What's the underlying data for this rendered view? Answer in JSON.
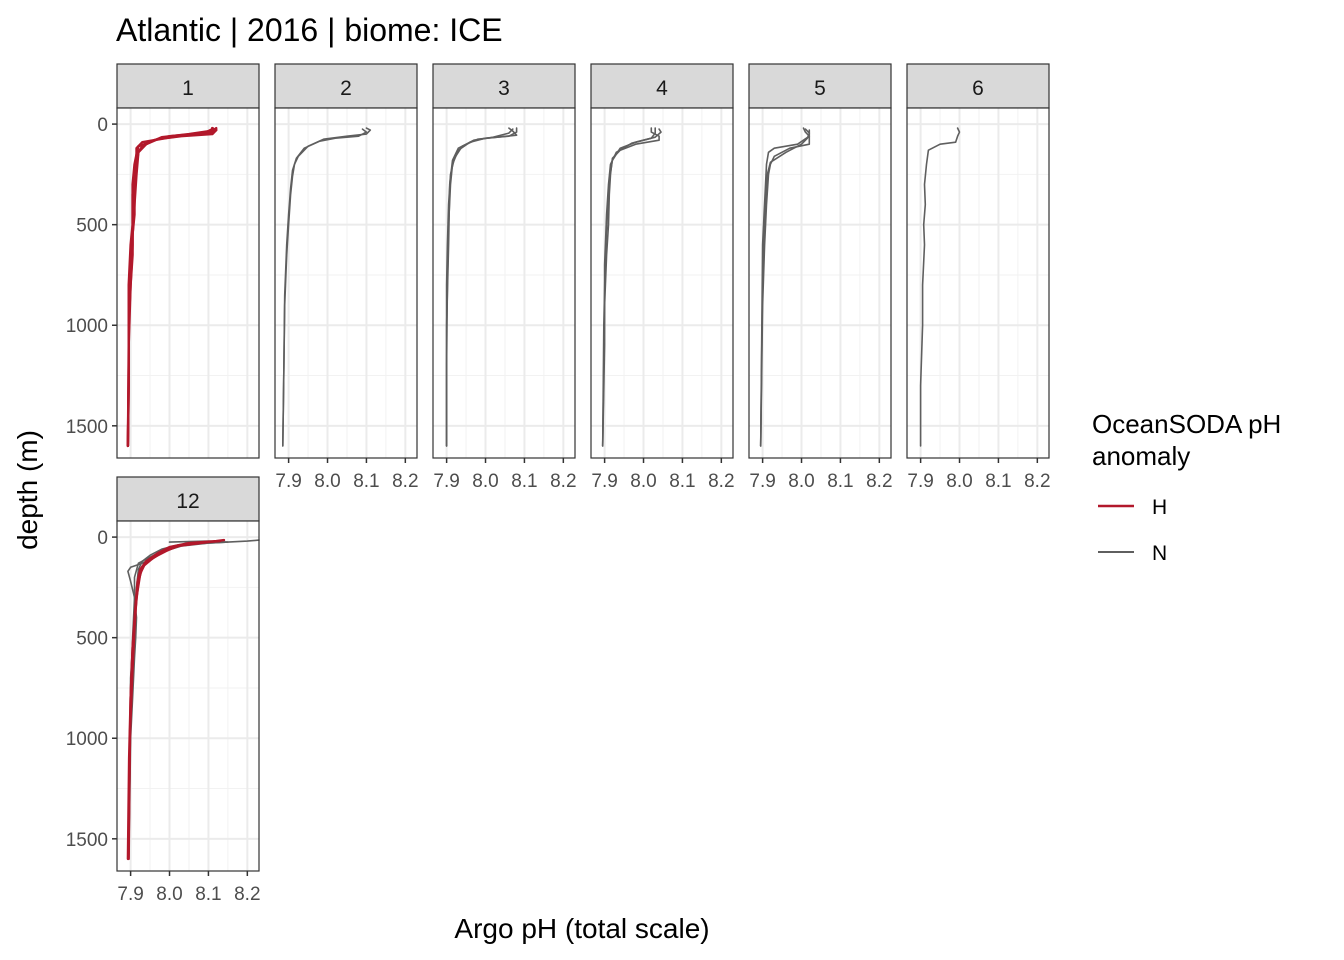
{
  "chart_data": {
    "type": "line",
    "title": "Atlantic | 2016 | biome: ICE",
    "xlabel": "Argo pH (total scale)",
    "ylabel": "depth (m)",
    "xlim": [
      7.865,
      8.23
    ],
    "ylim": [
      1660,
      -80
    ],
    "x_ticks": [
      7.9,
      8.0,
      8.1,
      8.2
    ],
    "x_tick_labels": [
      "7.9",
      "8.0",
      "8.1",
      "8.2"
    ],
    "y_ticks": [
      0,
      500,
      1000,
      1500
    ],
    "y_tick_labels": [
      "0",
      "500",
      "1000",
      "1500"
    ],
    "grid": true,
    "legend": {
      "title": "OceanSODA pH anomaly",
      "title_lines": [
        "OceanSODA pH",
        "anomaly"
      ],
      "position": "right",
      "entries": [
        {
          "key": "H",
          "label": "H",
          "color": "#b2182b"
        },
        {
          "key": "N",
          "label": "N",
          "color": "#5f5f5f"
        }
      ]
    },
    "panels": [
      {
        "label": "1",
        "series": [
          {
            "group": "H",
            "x": [
              8.11,
              8.12,
              8.11,
              8.03,
              7.99,
              7.93,
              7.915,
              7.915,
              7.91,
              7.905,
              7.905,
              7.905,
              7.9,
              7.895,
              7.895,
              7.895,
              7.893
            ],
            "y": [
              20,
              30,
              50,
              60,
              70,
              90,
              120,
              150,
              200,
              300,
              400,
              500,
              600,
              800,
              1000,
              1300,
              1600
            ]
          },
          {
            "group": "H",
            "x": [
              8.12,
              8.12,
              8.05,
              7.98,
              7.95,
              7.92,
              7.915,
              7.91,
              7.905,
              7.905,
              7.905,
              7.9,
              7.895,
              7.895,
              7.893
            ],
            "y": [
              20,
              30,
              50,
              65,
              90,
              110,
              150,
              250,
              350,
              500,
              600,
              800,
              1000,
              1300,
              1600
            ]
          },
          {
            "group": "H",
            "x": [
              8.11,
              8.09,
              8.0,
              7.96,
              7.93,
              7.92,
              7.915,
              7.91,
              7.91,
              7.9,
              7.895,
              7.895,
              7.893
            ],
            "y": [
              25,
              45,
              60,
              80,
              110,
              140,
              200,
              300,
              450,
              650,
              900,
              1200,
              1600
            ]
          },
          {
            "group": "H",
            "x": [
              8.11,
              8.11,
              8.04,
              7.97,
              7.94,
              7.92,
              7.915,
              7.91,
              7.905,
              7.905,
              7.9,
              7.895,
              7.893
            ],
            "y": [
              20,
              40,
              55,
              75,
              100,
              140,
              250,
              400,
              550,
              650,
              800,
              1100,
              1600
            ]
          }
        ]
      },
      {
        "label": "2",
        "series": [
          {
            "group": "N",
            "x": [
              8.1,
              8.11,
              8.1,
              8.05,
              7.99,
              7.95,
              7.925,
              7.915,
              7.91,
              7.905,
              7.9,
              7.895,
              7.89,
              7.888,
              7.885
            ],
            "y": [
              20,
              30,
              50,
              60,
              75,
              110,
              160,
              200,
              260,
              350,
              500,
              650,
              900,
              1200,
              1600
            ]
          },
          {
            "group": "N",
            "x": [
              8.09,
              8.1,
              8.08,
              8.02,
              7.98,
              7.94,
              7.92,
              7.91,
              7.905,
              7.9,
              7.895,
              7.89,
              7.888,
              7.885
            ],
            "y": [
              25,
              40,
              60,
              70,
              85,
              120,
              170,
              230,
              320,
              450,
              600,
              850,
              1200,
              1600
            ]
          }
        ]
      },
      {
        "label": "3",
        "series": [
          {
            "group": "N",
            "x": [
              8.06,
              8.07,
              8.08,
              8.03,
              7.98,
              7.94,
              7.92,
              7.91,
              7.905,
              7.902,
              7.9,
              7.9,
              7.9,
              7.9
            ],
            "y": [
              20,
              35,
              55,
              65,
              75,
              110,
              170,
              250,
              400,
              600,
              800,
              1000,
              1300,
              1600
            ]
          },
          {
            "group": "N",
            "x": [
              8.08,
              8.08,
              8.06,
              8.0,
              7.96,
              7.93,
              7.915,
              7.91,
              7.905,
              7.902,
              7.9,
              7.9
            ],
            "y": [
              20,
              40,
              60,
              70,
              90,
              130,
              200,
              300,
              500,
              800,
              1200,
              1600
            ]
          },
          {
            "group": "N",
            "x": [
              8.07,
              8.06,
              8.02,
              7.97,
              7.93,
              7.915,
              7.908,
              7.905,
              7.9,
              7.9
            ],
            "y": [
              25,
              45,
              65,
              80,
              120,
              180,
              300,
              600,
              1000,
              1600
            ]
          }
        ]
      },
      {
        "label": "4",
        "series": [
          {
            "group": "N",
            "x": [
              8.02,
              8.02,
              8.04,
              8.04,
              7.98,
              7.94,
              7.92,
              7.915,
              7.912,
              7.91,
              7.905,
              7.9,
              7.898,
              7.895
            ],
            "y": [
              20,
              40,
              60,
              80,
              100,
              130,
              170,
              250,
              350,
              500,
              650,
              900,
              1200,
              1600
            ]
          },
          {
            "group": "N",
            "x": [
              8.03,
              8.03,
              8.02,
              7.97,
              7.93,
              7.915,
              7.91,
              7.905,
              7.9,
              7.9,
              7.895
            ],
            "y": [
              20,
              45,
              70,
              95,
              140,
              200,
              300,
              450,
              700,
              1100,
              1600
            ]
          },
          {
            "group": "N",
            "x": [
              8.04,
              8.045,
              8.03,
              7.98,
              7.94,
              7.92,
              7.912,
              7.908,
              7.902,
              7.898,
              7.895
            ],
            "y": [
              25,
              40,
              65,
              90,
              120,
              180,
              280,
              420,
              650,
              1000,
              1600
            ]
          }
        ]
      },
      {
        "label": "5",
        "series": [
          {
            "group": "N",
            "x": [
              8.005,
              8.01,
              8.02,
              8.02,
              7.97,
              7.93,
              7.92,
              7.915,
              7.91,
              7.905,
              7.9,
              7.898,
              7.895
            ],
            "y": [
              20,
              40,
              60,
              100,
              120,
              160,
              200,
              250,
              400,
              600,
              900,
              1200,
              1600
            ]
          },
          {
            "group": "N",
            "x": [
              8.01,
              8.02,
              8.015,
              8.0,
              7.96,
              7.92,
              7.912,
              7.908,
              7.903,
              7.9,
              7.898,
              7.895
            ],
            "y": [
              25,
              45,
              70,
              100,
              140,
              190,
              250,
              380,
              550,
              800,
              1100,
              1600
            ]
          },
          {
            "group": "N",
            "x": [
              8.02,
              8.02,
              7.99,
              7.93,
              7.915,
              7.91,
              7.9,
              7.895
            ],
            "y": [
              30,
              60,
              100,
              120,
              140,
              200,
              600,
              1600
            ]
          }
        ]
      },
      {
        "label": "6",
        "series": [
          {
            "group": "N",
            "x": [
              7.995,
              8.0,
              7.995,
              7.99,
              7.95,
              7.92,
              7.915,
              7.91,
              7.912,
              7.908,
              7.91,
              7.905,
              7.905,
              7.9,
              7.9
            ],
            "y": [
              20,
              40,
              60,
              90,
              100,
              130,
              200,
              300,
              400,
              500,
              600,
              800,
              1000,
              1300,
              1600
            ]
          }
        ]
      },
      {
        "label": "12",
        "series": [
          {
            "group": "N",
            "x": [
              8.0,
              8.1,
              8.15,
              8.1,
              8.03,
              8.0,
              7.96,
              7.93,
              7.9,
              7.893,
              7.9,
              7.91,
              7.915,
              7.913,
              7.91,
              7.905,
              7.9,
              7.898,
              7.895
            ],
            "y": [
              25,
              20,
              25,
              30,
              40,
              60,
              100,
              130,
              150,
              170,
              220,
              300,
              400,
              500,
              600,
              800,
              1000,
              1300,
              1600
            ]
          },
          {
            "group": "N",
            "x": [
              8.23,
              8.2,
              8.1,
              8.03,
              7.97,
              7.92,
              7.91,
              7.91,
              7.905,
              7.9,
              7.895
            ],
            "y": [
              15,
              20,
              30,
              45,
              80,
              130,
              200,
              300,
              500,
              900,
              1600
            ]
          },
          {
            "group": "N",
            "x": [
              8.12,
              8.08,
              8.02,
              7.98,
              7.95,
              7.93,
              7.92,
              7.915,
              7.91,
              7.9,
              7.898,
              7.895
            ],
            "y": [
              20,
              25,
              40,
              60,
              90,
              120,
              160,
              250,
              400,
              700,
              1100,
              1600
            ]
          },
          {
            "group": "H",
            "x": [
              8.14,
              8.12,
              8.05,
              8.0,
              7.97,
              7.94,
              7.925,
              7.918,
              7.912,
              7.905,
              7.9,
              7.896,
              7.893
            ],
            "y": [
              15,
              20,
              30,
              50,
              80,
              120,
              160,
              220,
              350,
              550,
              800,
              1100,
              1600
            ]
          },
          {
            "group": "H",
            "x": [
              8.13,
              8.1,
              8.02,
              7.99,
              7.96,
              7.935,
              7.925,
              7.915,
              7.91,
              7.905,
              7.898,
              7.895
            ],
            "y": [
              20,
              25,
              45,
              70,
              100,
              140,
              180,
              300,
              450,
              650,
              1000,
              1600
            ]
          },
          {
            "group": "H",
            "x": [
              8.09,
              8.03,
              8.0,
              7.97,
              7.945,
              7.93,
              7.92,
              7.913,
              7.905,
              7.9,
              7.897,
              7.894
            ],
            "y": [
              25,
              40,
              60,
              90,
              120,
              150,
              220,
              350,
              550,
              800,
              1200,
              1600
            ]
          }
        ]
      }
    ]
  }
}
